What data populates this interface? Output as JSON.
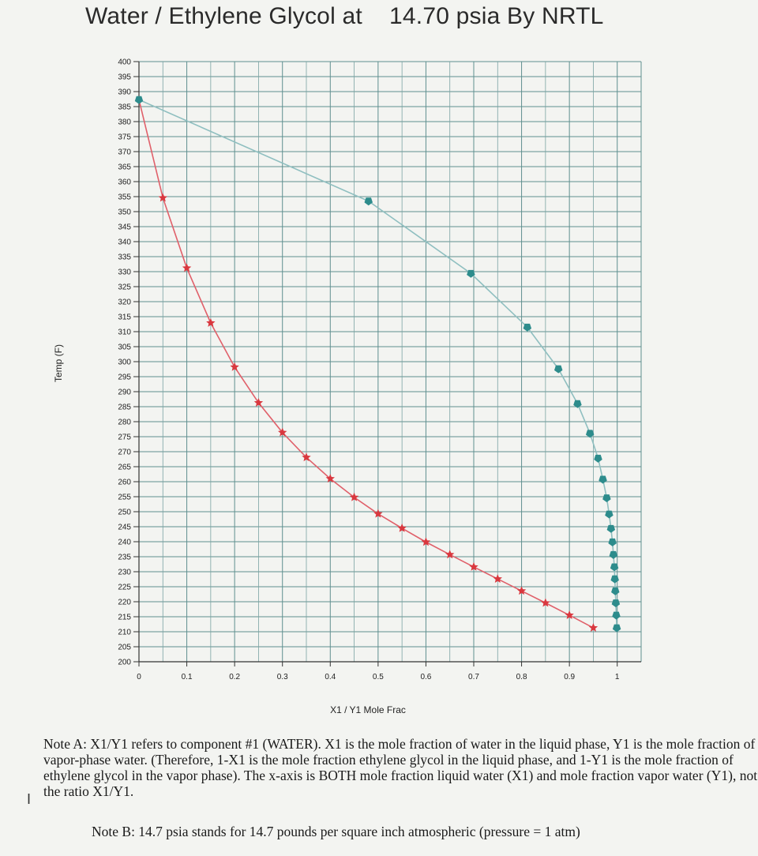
{
  "chart_data": {
    "type": "line",
    "title": "Water / Ethylene Glycol at    14.70 psia By NRTL",
    "xlabel": "X1 / Y1 Mole Frac",
    "ylabel": "Temp (F)",
    "xlim": [
      0,
      1.05
    ],
    "ylim": [
      200,
      400
    ],
    "x_ticks": [
      "0",
      "0.1",
      "0.2",
      "0.3",
      "0.4",
      "0.5",
      "0.6",
      "0.7",
      "0.8",
      "0.9",
      "1"
    ],
    "y_ticks": [
      "400",
      "395",
      "390",
      "385",
      "380",
      "375",
      "370",
      "365",
      "360",
      "355",
      "350",
      "345",
      "340",
      "335",
      "330",
      "325",
      "320",
      "315",
      "310",
      "305",
      "300",
      "295",
      "290",
      "285",
      "280",
      "275",
      "270",
      "265",
      "260",
      "255",
      "250",
      "245",
      "240",
      "235",
      "230",
      "225",
      "220",
      "215",
      "210",
      "205",
      "200"
    ],
    "grid": true,
    "series": [
      {
        "color": "#e0606a",
        "marker": "star",
        "points": [
          [
            0.0,
            387.3
          ],
          [
            0.05,
            354.6
          ],
          [
            0.1,
            331.2
          ],
          [
            0.15,
            312.9
          ],
          [
            0.2,
            298.2
          ],
          [
            0.25,
            286.3
          ],
          [
            0.3,
            276.4
          ],
          [
            0.35,
            268.1
          ],
          [
            0.4,
            261.0
          ],
          [
            0.45,
            254.8
          ],
          [
            0.5,
            249.3
          ],
          [
            0.55,
            244.5
          ],
          [
            0.6,
            239.9
          ],
          [
            0.65,
            235.7
          ],
          [
            0.7,
            231.6
          ],
          [
            0.75,
            227.6
          ],
          [
            0.8,
            223.6
          ],
          [
            0.85,
            219.6
          ],
          [
            0.9,
            215.5
          ],
          [
            0.95,
            211.3
          ]
        ]
      },
      {
        "color": "#8fbfc0",
        "marker": "pentagon",
        "marker_color": "#2d8c8c",
        "points": [
          [
            0.0,
            387.3
          ],
          [
            0.48,
            353.5
          ],
          [
            0.694,
            329.4
          ],
          [
            0.812,
            311.5
          ],
          [
            0.877,
            297.6
          ],
          [
            0.917,
            286.0
          ],
          [
            0.943,
            276.1
          ],
          [
            0.96,
            267.8
          ],
          [
            0.97,
            260.8
          ],
          [
            0.978,
            254.6
          ],
          [
            0.983,
            249.2
          ],
          [
            0.987,
            244.4
          ],
          [
            0.99,
            239.9
          ],
          [
            0.992,
            235.7
          ],
          [
            0.994,
            231.6
          ],
          [
            0.995,
            227.6
          ],
          [
            0.996,
            223.6
          ],
          [
            0.997,
            219.6
          ],
          [
            0.998,
            215.5
          ],
          [
            0.999,
            211.3
          ]
        ]
      }
    ]
  },
  "notes": {
    "a": "Note A: X1/Y1 refers to component #1 (WATER). X1 is the mole fraction of water in the liquid phase, Y1 is the mole fraction of vapor-phase water. (Therefore, 1-X1 is the mole fraction ethylene glycol in the liquid phase, and 1-Y1 is the mole fraction of ethylene glycol in the vapor phase). The x-axis is BOTH mole fraction liquid water (X1) and mole fraction vapor water (Y1), not the ratio X1/Y1.",
    "b": "Note B: 14.7 psia stands for 14.7 pounds per square inch atmospheric (pressure = 1 atm)"
  },
  "cursor_glyph": "I"
}
